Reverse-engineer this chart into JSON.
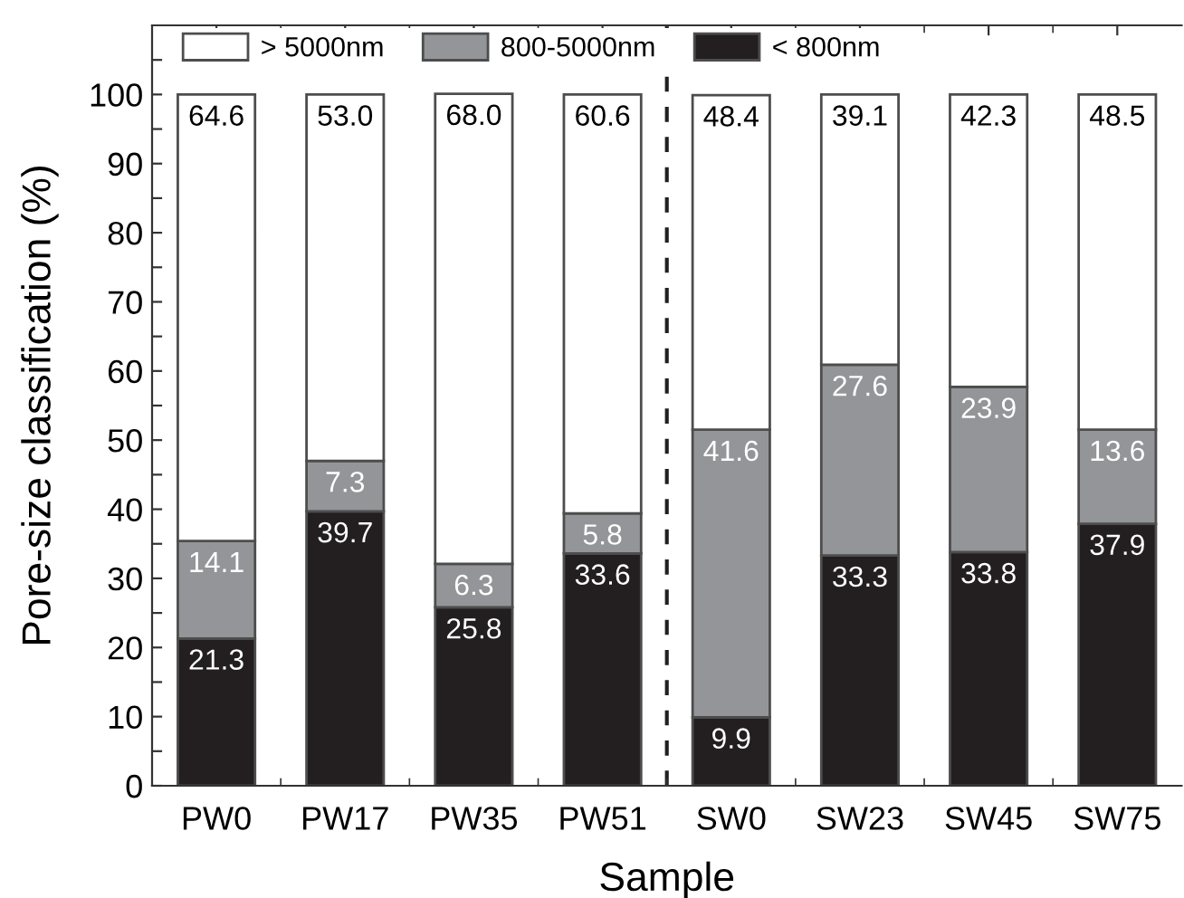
{
  "chart_data": {
    "type": "bar",
    "stacked": true,
    "xlabel": "Sample",
    "ylabel": "Pore-size classification (%)",
    "categories": [
      "PW0",
      "PW17",
      "PW35",
      "PW51",
      "SW0",
      "SW23",
      "SW45",
      "SW75"
    ],
    "series": [
      {
        "name": "< 800nm",
        "color": "#231f20",
        "values": [
          21.3,
          39.7,
          25.8,
          33.6,
          9.9,
          33.3,
          33.8,
          37.9
        ],
        "value_labels": [
          "21.3",
          "39.7",
          "25.8",
          "33.6",
          "9.9",
          "33.3",
          "33.8",
          "37.9"
        ]
      },
      {
        "name": "800-5000nm",
        "color": "#939598",
        "values": [
          14.1,
          7.3,
          6.3,
          5.8,
          41.6,
          27.6,
          23.9,
          13.6
        ],
        "value_labels": [
          "14.1",
          "7.3",
          "6.3",
          "5.8",
          "41.6",
          "27.6",
          "23.9",
          "13.6"
        ]
      },
      {
        "name": "> 5000nm",
        "color": "#ffffff",
        "values": [
          64.6,
          53.0,
          68.0,
          60.6,
          48.4,
          39.1,
          42.3,
          48.5
        ],
        "value_labels": [
          "64.6",
          "53.0",
          "68.0",
          "60.6",
          "48.4",
          "39.1",
          "42.3",
          "48.5"
        ]
      }
    ],
    "ylim": [
      0,
      110
    ],
    "yticks": [
      0,
      {
        "value": 5,
        "label": null
      },
      10,
      {
        "value": 15,
        "label": null
      },
      20,
      {
        "value": 25,
        "label": null
      },
      30,
      {
        "value": 35,
        "label": null
      },
      40,
      {
        "value": 45,
        "label": null
      },
      50,
      {
        "value": 55,
        "label": null
      },
      60,
      {
        "value": 65,
        "label": null
      },
      70,
      {
        "value": 75,
        "label": null
      },
      80,
      {
        "value": 85,
        "label": null
      },
      90,
      {
        "value": 95,
        "label": null
      },
      100,
      {
        "value": 105,
        "label": null
      }
    ],
    "legend": "top left"
  }
}
